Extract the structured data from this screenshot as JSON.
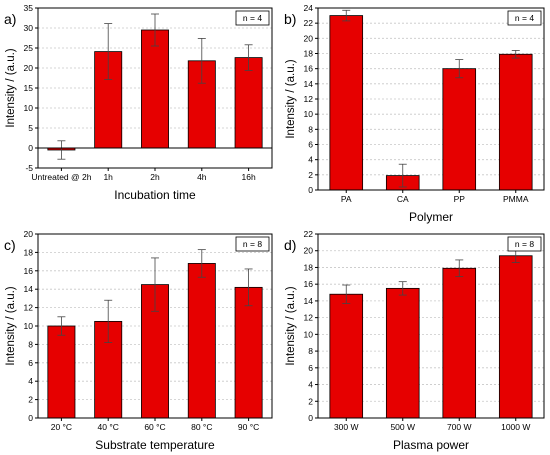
{
  "chart_data": [
    {
      "type": "bar",
      "panel_label": "a)",
      "categories": [
        "Untreated @ 2h",
        "1h",
        "2h",
        "4h",
        "16h"
      ],
      "values": [
        -0.5,
        24.1,
        29.5,
        21.8,
        22.6
      ],
      "errors": [
        2.3,
        7.0,
        4.0,
        5.6,
        3.2
      ],
      "xlabel": "Incubation time",
      "ylabel": "Intensity / (a.u.)",
      "ylim": [
        -5,
        35
      ],
      "yticks": [
        -5,
        0,
        5,
        10,
        15,
        20,
        25,
        30,
        35
      ],
      "annotation": "n = 4",
      "grid": true,
      "bar_color": "#e60000"
    },
    {
      "type": "bar",
      "panel_label": "b)",
      "categories": [
        "PA",
        "CA",
        "PP",
        "PMMA"
      ],
      "values": [
        23.0,
        1.9,
        16.0,
        17.9
      ],
      "errors": [
        0.7,
        1.5,
        1.2,
        0.5
      ],
      "xlabel": "Polymer",
      "ylabel": "Intensity / (a.u.)",
      "ylim": [
        0,
        24
      ],
      "yticks": [
        0,
        2,
        4,
        6,
        8,
        10,
        12,
        14,
        16,
        18,
        20,
        22,
        24
      ],
      "annotation": "n = 4",
      "grid": true,
      "bar_color": "#e60000"
    },
    {
      "type": "bar",
      "panel_label": "c)",
      "categories": [
        "20 °C",
        "40 °C",
        "60 °C",
        "80 °C",
        "90 °C"
      ],
      "values": [
        10.0,
        10.5,
        14.5,
        16.8,
        14.2
      ],
      "errors": [
        1.0,
        2.3,
        2.9,
        1.5,
        2.0
      ],
      "xlabel": "Substrate temperature",
      "ylabel": "Intensity / (a.u.)",
      "ylim": [
        0,
        20
      ],
      "yticks": [
        0,
        2,
        4,
        6,
        8,
        10,
        12,
        14,
        16,
        18,
        20
      ],
      "annotation": "n = 8",
      "grid": true,
      "bar_color": "#e60000"
    },
    {
      "type": "bar",
      "panel_label": "d)",
      "categories": [
        "300 W",
        "500 W",
        "700 W",
        "1000 W"
      ],
      "values": [
        14.8,
        15.5,
        17.9,
        19.4
      ],
      "errors": [
        1.1,
        0.8,
        1.0,
        0.8
      ],
      "xlabel": "Plasma power",
      "ylabel": "Intensity / (a.u.)",
      "ylim": [
        0,
        22
      ],
      "yticks": [
        0,
        2,
        4,
        6,
        8,
        10,
        12,
        14,
        16,
        18,
        20,
        22
      ],
      "annotation": "n = 8",
      "grid": true,
      "bar_color": "#e60000"
    }
  ]
}
